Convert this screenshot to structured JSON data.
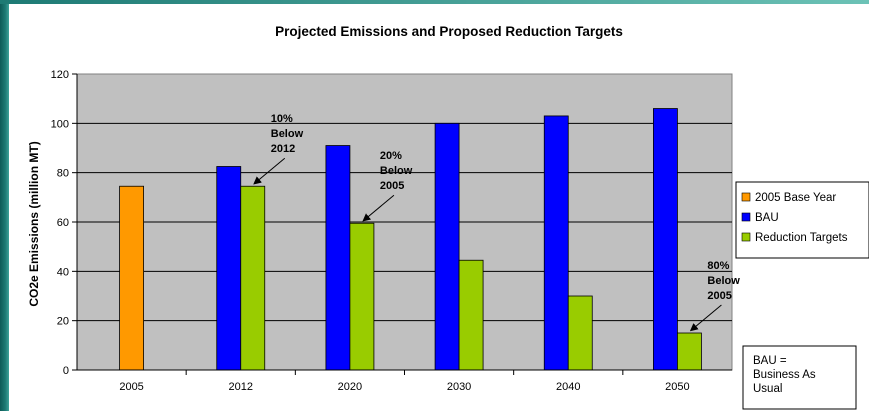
{
  "colors": {
    "base_year": "#FF9900",
    "bau": "#0000FF",
    "reduction": "#99CC00",
    "plot_bg": "#C0C0C0"
  },
  "chart_data": {
    "type": "bar",
    "title": "Projected Emissions and Proposed Reduction Targets",
    "xlabel": "",
    "ylabel": "CO2e Emissions (million MT)",
    "ylim": [
      0,
      120
    ],
    "yticks": [
      0,
      20,
      40,
      60,
      80,
      100,
      120
    ],
    "categories": [
      "2005",
      "2012",
      "2020",
      "2030",
      "2040",
      "2050"
    ],
    "grid": true,
    "legend_position": "right",
    "series": [
      {
        "name": "2005 Base Year",
        "values": [
          74.5,
          null,
          null,
          null,
          null,
          null
        ]
      },
      {
        "name": "BAU",
        "values": [
          null,
          82.5,
          91,
          100,
          103,
          106
        ]
      },
      {
        "name": "Reduction Targets",
        "values": [
          null,
          74.5,
          59.5,
          44.5,
          30,
          15
        ]
      }
    ],
    "annotations": [
      {
        "lines": [
          "10%",
          "Below",
          "2012"
        ],
        "category": "2012",
        "series": "Reduction Targets"
      },
      {
        "lines": [
          "20%",
          "Below",
          "2005"
        ],
        "category": "2020",
        "series": "Reduction Targets"
      },
      {
        "lines": [
          "80%",
          "Below",
          "2005"
        ],
        "category": "2050",
        "series": "Reduction Targets"
      }
    ],
    "note": [
      "BAU =",
      "Business As",
      "Usual"
    ]
  }
}
